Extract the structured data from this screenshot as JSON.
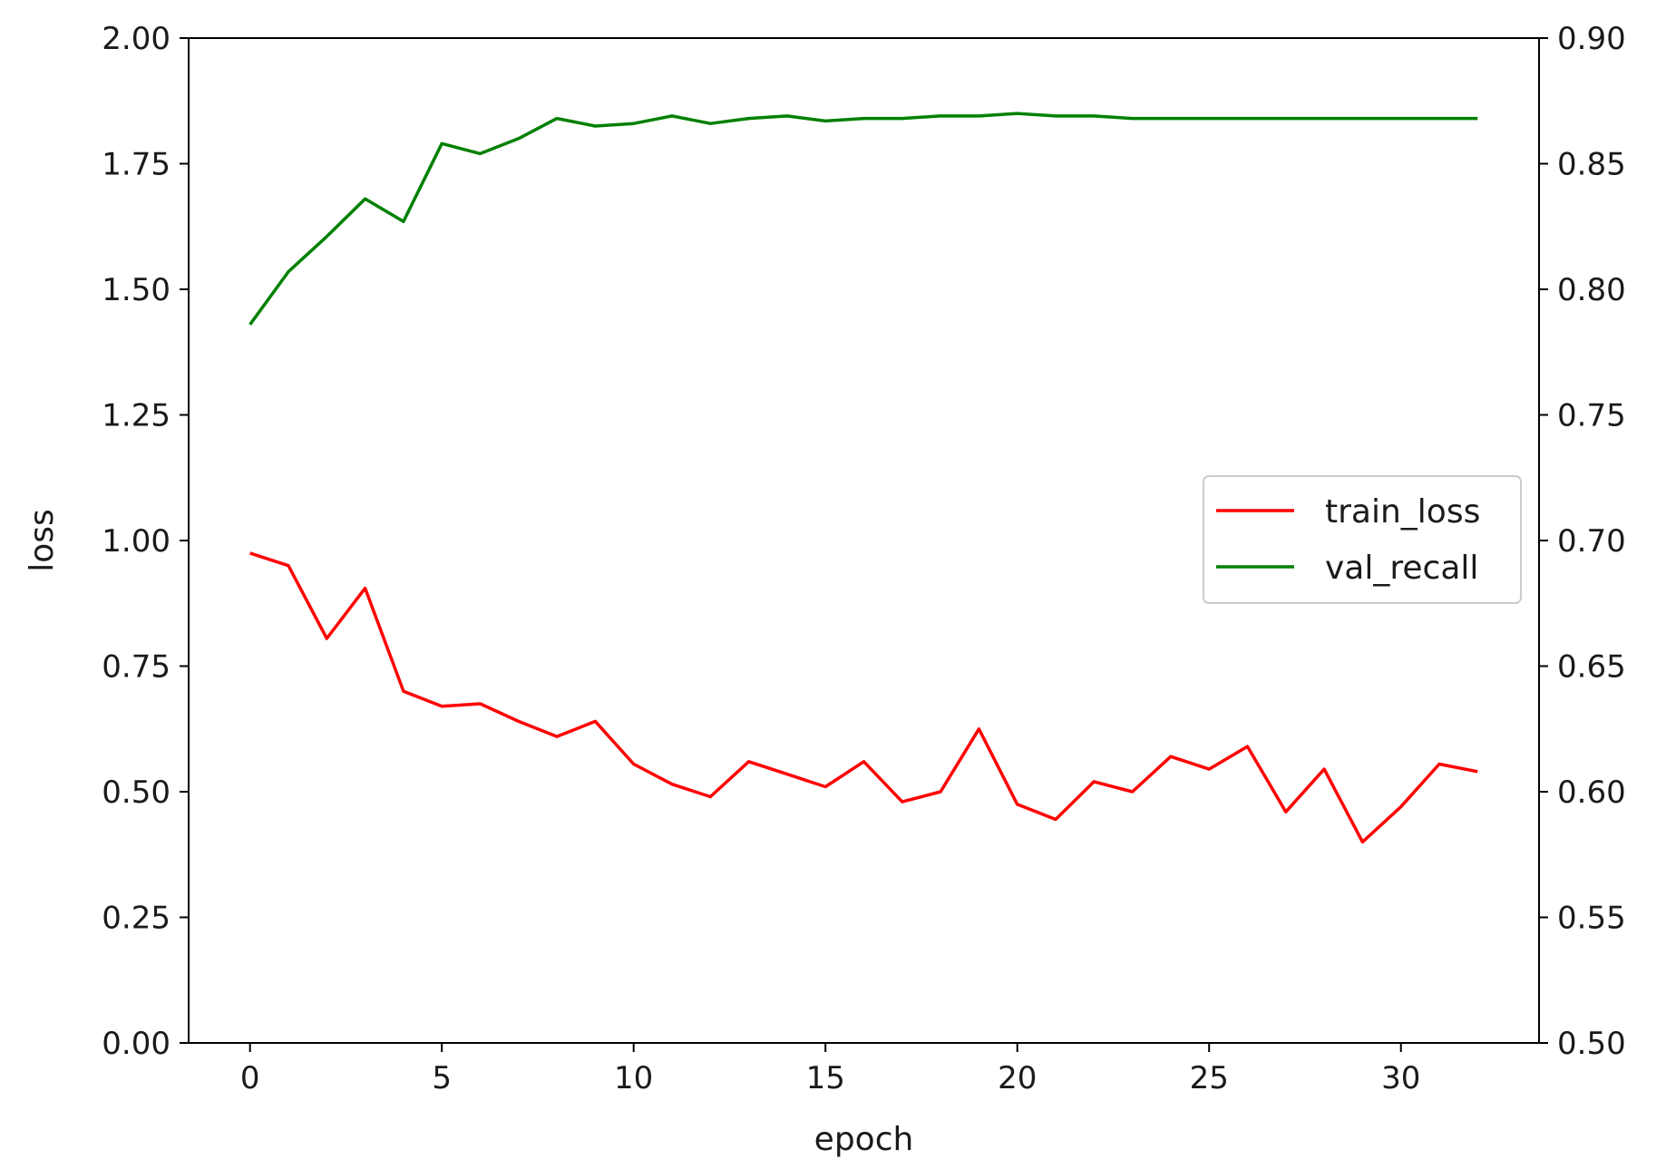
{
  "chart_data": {
    "type": "line",
    "title": "",
    "xlabel": "epoch",
    "ylabel": "loss",
    "ylabel_right": "",
    "xlim": [
      -1.6,
      33.6
    ],
    "ylim": [
      0.0,
      2.0
    ],
    "ylim_right": [
      0.5,
      0.9
    ],
    "x_ticks": [
      0,
      5,
      10,
      15,
      20,
      25,
      30
    ],
    "x_tick_labels": [
      "0",
      "5",
      "10",
      "15",
      "20",
      "25",
      "30"
    ],
    "y_ticks": [
      0.0,
      0.25,
      0.5,
      0.75,
      1.0,
      1.25,
      1.5,
      1.75,
      2.0
    ],
    "y_tick_labels": [
      "0.00",
      "0.25",
      "0.50",
      "0.75",
      "1.00",
      "1.25",
      "1.50",
      "1.75",
      "2.00"
    ],
    "y_ticks_right": [
      0.5,
      0.55,
      0.6,
      0.65,
      0.7,
      0.75,
      0.8,
      0.85,
      0.9
    ],
    "y_tick_labels_right": [
      "0.50",
      "0.55",
      "0.60",
      "0.65",
      "0.70",
      "0.75",
      "0.80",
      "0.85",
      "0.90"
    ],
    "grid": false,
    "legend_position": "center-right",
    "x": [
      0,
      1,
      2,
      3,
      4,
      5,
      6,
      7,
      8,
      9,
      10,
      11,
      12,
      13,
      14,
      15,
      16,
      17,
      18,
      19,
      20,
      21,
      22,
      23,
      24,
      25,
      26,
      27,
      28,
      29,
      30,
      31,
      32
    ],
    "series": [
      {
        "name": "train_loss",
        "axis": "left",
        "color": "#ff0000",
        "values": [
          0.975,
          0.95,
          0.805,
          0.905,
          0.7,
          0.67,
          0.675,
          0.64,
          0.61,
          0.64,
          0.555,
          0.515,
          0.49,
          0.56,
          0.535,
          0.51,
          0.56,
          0.48,
          0.5,
          0.625,
          0.475,
          0.445,
          0.52,
          0.5,
          0.57,
          0.545,
          0.59,
          0.46,
          0.545,
          0.4,
          0.47,
          0.555,
          0.54
        ]
      },
      {
        "name": "val_recall",
        "axis": "right",
        "color": "#008000",
        "values": [
          0.786,
          0.807,
          0.821,
          0.836,
          0.827,
          0.858,
          0.854,
          0.86,
          0.868,
          0.865,
          0.866,
          0.869,
          0.866,
          0.868,
          0.869,
          0.867,
          0.868,
          0.868,
          0.869,
          0.869,
          0.87,
          0.869,
          0.869,
          0.868,
          0.868,
          0.868,
          0.868,
          0.868,
          0.868,
          0.868,
          0.868,
          0.868,
          0.868
        ]
      }
    ]
  }
}
